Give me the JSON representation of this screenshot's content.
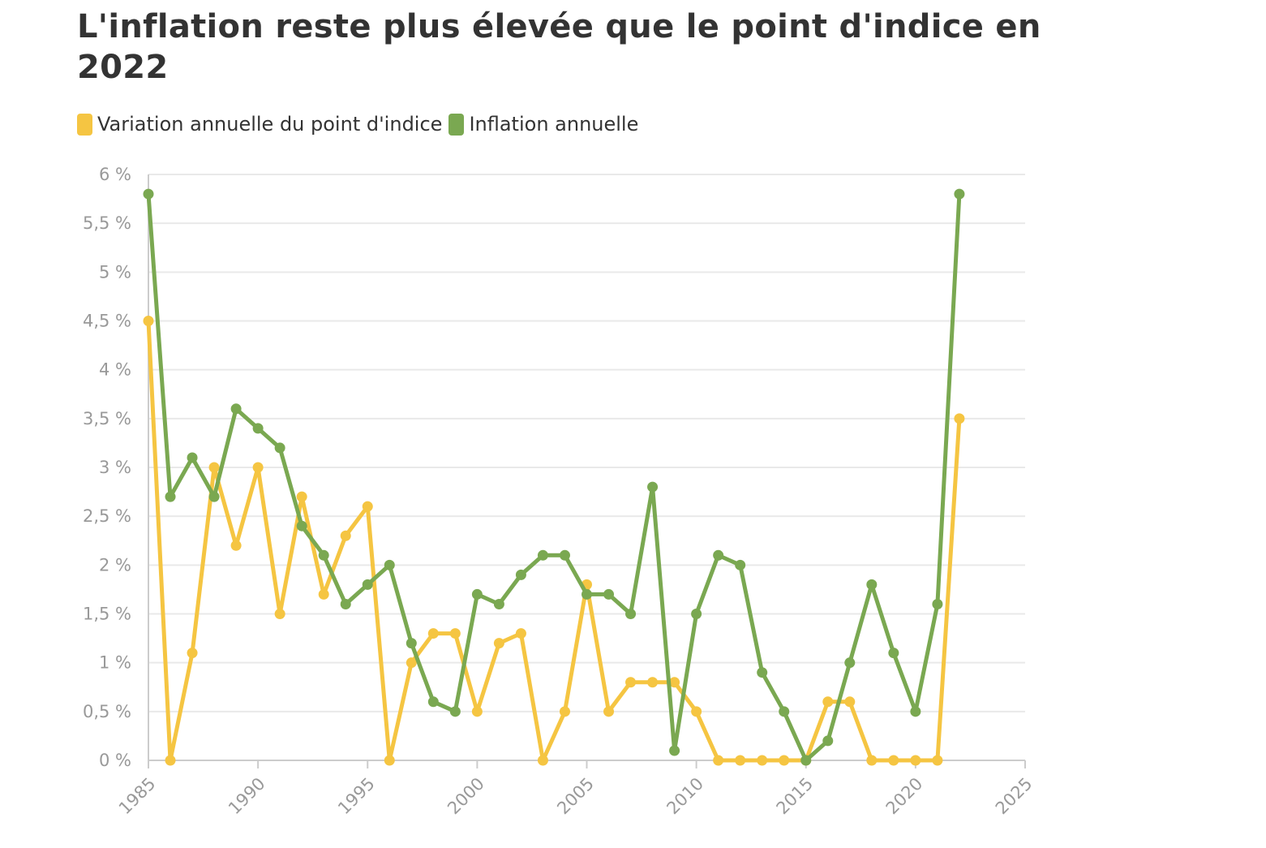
{
  "chart_data": {
    "type": "line",
    "title": "L'inflation reste plus élevée que le point d'indice en 2022",
    "legend_placement": "top-left",
    "grid": true,
    "xlim": [
      1985,
      2025
    ],
    "ylim": [
      0,
      6
    ],
    "x_ticks": [
      {
        "value": 1985,
        "label": "1985"
      },
      {
        "value": 1990,
        "label": "1990"
      },
      {
        "value": 1995,
        "label": "1995"
      },
      {
        "value": 2000,
        "label": "2000"
      },
      {
        "value": 2005,
        "label": "2005"
      },
      {
        "value": 2010,
        "label": "2010"
      },
      {
        "value": 2015,
        "label": "2015"
      },
      {
        "value": 2020,
        "label": "2020"
      },
      {
        "value": 2025,
        "label": "2025"
      }
    ],
    "y_ticks": [
      {
        "value": 0,
        "label": "0 %"
      },
      {
        "value": 0.5,
        "label": "0,5 %"
      },
      {
        "value": 1,
        "label": "1 %"
      },
      {
        "value": 1.5,
        "label": "1,5 %"
      },
      {
        "value": 2,
        "label": "2 %"
      },
      {
        "value": 2.5,
        "label": "2,5 %"
      },
      {
        "value": 3,
        "label": "3 %"
      },
      {
        "value": 3.5,
        "label": "3,5 %"
      },
      {
        "value": 4,
        "label": "4 %"
      },
      {
        "value": 4.5,
        "label": "4,5 %"
      },
      {
        "value": 5,
        "label": "5 %"
      },
      {
        "value": 5.5,
        "label": "5,5 %"
      },
      {
        "value": 6,
        "label": "6 %"
      }
    ],
    "x": [
      1985,
      1986,
      1987,
      1988,
      1989,
      1990,
      1991,
      1992,
      1993,
      1994,
      1995,
      1996,
      1997,
      1998,
      1999,
      2000,
      2001,
      2002,
      2003,
      2004,
      2005,
      2006,
      2007,
      2008,
      2009,
      2010,
      2011,
      2012,
      2013,
      2014,
      2015,
      2016,
      2017,
      2018,
      2019,
      2020,
      2021,
      2022
    ],
    "series": [
      {
        "name": "Variation annuelle du point d'indice",
        "color": "#f5c542",
        "values": [
          4.5,
          0,
          1.1,
          3.0,
          2.2,
          3.0,
          1.5,
          2.7,
          1.7,
          2.3,
          2.6,
          0,
          1.0,
          1.3,
          1.3,
          0.5,
          1.2,
          1.3,
          0,
          0.5,
          1.8,
          0.5,
          0.8,
          0.8,
          0.8,
          0.5,
          0,
          0,
          0,
          0,
          0,
          0.6,
          0.6,
          0,
          0,
          0,
          0,
          3.5
        ]
      },
      {
        "name": "Inflation annuelle",
        "color": "#7aa851",
        "values": [
          5.8,
          2.7,
          3.1,
          2.7,
          3.6,
          3.4,
          3.2,
          2.4,
          2.1,
          1.6,
          1.8,
          2.0,
          1.2,
          0.6,
          0.5,
          1.7,
          1.6,
          1.9,
          2.1,
          2.1,
          1.7,
          1.7,
          1.5,
          2.8,
          0.1,
          1.5,
          2.1,
          2.0,
          0.9,
          0.5,
          0,
          0.2,
          1.0,
          1.8,
          1.1,
          0.5,
          1.6,
          5.8
        ]
      }
    ]
  }
}
